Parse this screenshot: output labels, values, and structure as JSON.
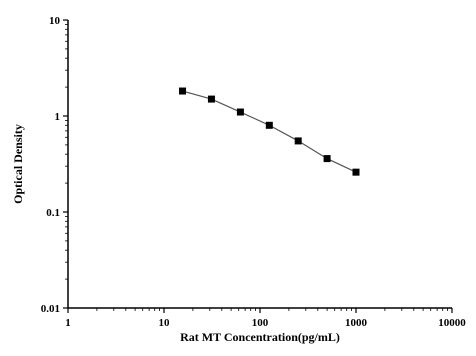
{
  "chart_data": {
    "type": "line",
    "title": "",
    "xlabel": "Rat MT Concentration(pg/mL)",
    "ylabel": "Optical Density",
    "xscale": "log",
    "yscale": "log",
    "xlim": [
      1,
      10000
    ],
    "ylim": [
      0.01,
      10
    ],
    "xticks": [
      "1",
      "10",
      "100",
      "1000",
      "10000"
    ],
    "yticks": [
      "0.01",
      "0.1",
      "1",
      "10"
    ],
    "grid": false,
    "legend": "none",
    "series": [
      {
        "x": [
          15.6,
          31.2,
          62.5,
          125,
          250,
          500,
          1000
        ],
        "y": [
          1.82,
          1.5,
          1.1,
          0.8,
          0.55,
          0.36,
          0.26
        ],
        "color": "#000000",
        "marker": "square"
      }
    ]
  }
}
